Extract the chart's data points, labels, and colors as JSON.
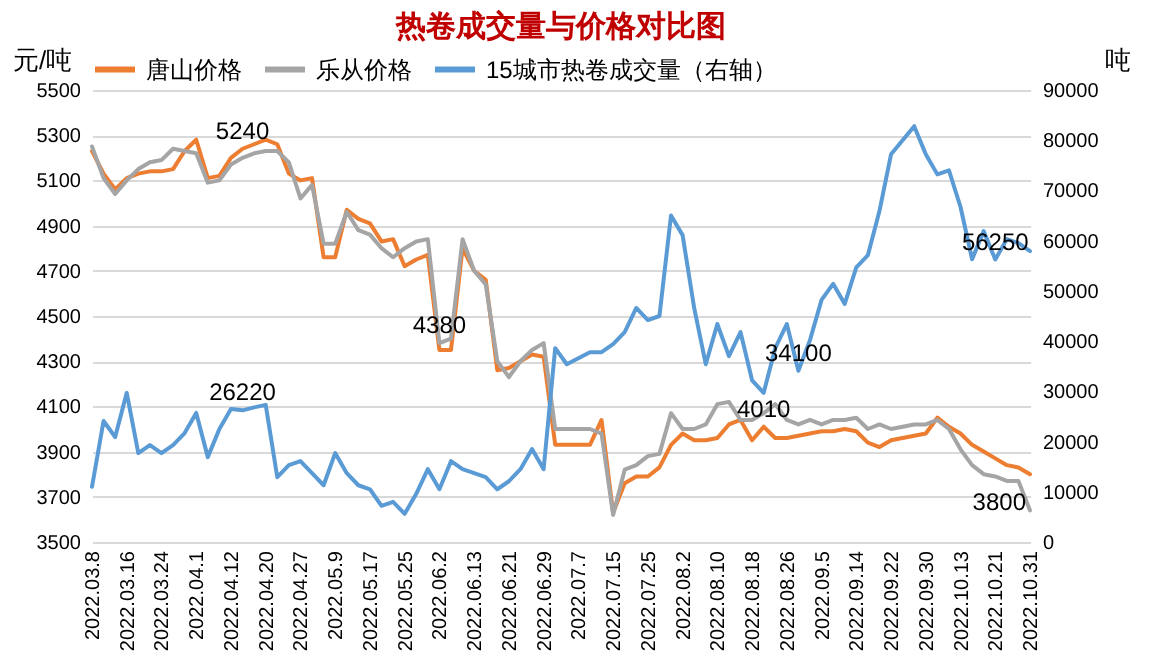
{
  "chart_data": {
    "type": "line",
    "title": "热卷成交量与价格对比图",
    "ylabel": "元/吨",
    "y2label": "吨",
    "categories": [
      "2022.03.8",
      null,
      null,
      "2022.03.16",
      null,
      null,
      "2022.03.24",
      null,
      null,
      "2022.04.1",
      null,
      null,
      "2022.04.12",
      null,
      null,
      "2022.04.20",
      null,
      null,
      "2022.04.27",
      null,
      null,
      "2022.05.9",
      null,
      null,
      "2022.05.17",
      null,
      null,
      "2022.05.25",
      null,
      null,
      "2022.06.2",
      null,
      null,
      "2022.06.13",
      null,
      null,
      "2022.06.21",
      null,
      null,
      "2022.06.29",
      null,
      null,
      "2022.07.7",
      null,
      null,
      "2022.07.15",
      null,
      null,
      "2022.07.25",
      null,
      null,
      "2022.08.2",
      null,
      null,
      "2022.08.10",
      null,
      null,
      "2022.08.18",
      null,
      null,
      "2022.08.26",
      null,
      null,
      "2022.09.5",
      null,
      null,
      "2022.09.14",
      null,
      null,
      "2022.09.22",
      null,
      null,
      "2022.09.30",
      null,
      null,
      "2022.10.13",
      null,
      null,
      "2022.10.21",
      null,
      null,
      "2022.10.31"
    ],
    "series": [
      {
        "name": "唐山价格",
        "color": "#ed7d31",
        "values": [
          5230,
          5130,
          5060,
          5110,
          5130,
          5140,
          5140,
          5150,
          5230,
          5280,
          5110,
          5120,
          5200,
          5240,
          5260,
          5280,
          5260,
          5130,
          5100,
          5110,
          4760,
          4760,
          4970,
          4930,
          4910,
          4830,
          4840,
          4720,
          4750,
          4770,
          4350,
          4350,
          4800,
          4700,
          4660,
          4260,
          4270,
          4300,
          4330,
          4320,
          3930,
          3930,
          3930,
          3930,
          4040,
          3630,
          3760,
          3790,
          3790,
          3830,
          3930,
          3980,
          3950,
          3950,
          3960,
          4020,
          4040,
          3950,
          4010,
          3960,
          3960,
          3970,
          3980,
          3990,
          3990,
          4000,
          3990,
          3940,
          3920,
          3950,
          3960,
          3970,
          3980,
          4050,
          4010,
          3980,
          3930,
          3900,
          3870,
          3840,
          3830,
          3800
        ],
        "value_labels": [
          null,
          null,
          null,
          null,
          null,
          null,
          null,
          null,
          null,
          null,
          null,
          null,
          null,
          "5240",
          null,
          null,
          null,
          null,
          null,
          null,
          null,
          null,
          null,
          null,
          null,
          null,
          null,
          null,
          null,
          null,
          null,
          null,
          null,
          null,
          null,
          null,
          null,
          null,
          null,
          null,
          null,
          null,
          null,
          null,
          null,
          null,
          null,
          null,
          null,
          null,
          null,
          null,
          null,
          null,
          null,
          null,
          null,
          null,
          "4010",
          null,
          null,
          null,
          null,
          null,
          null,
          null,
          null,
          null,
          null,
          null,
          null,
          null,
          null,
          null,
          null,
          null,
          null,
          null,
          null,
          null,
          null,
          "3800"
        ]
      },
      {
        "name": "乐从价格",
        "color": "#a5a5a5",
        "values": [
          5250,
          5110,
          5040,
          5100,
          5150,
          5180,
          5190,
          5240,
          5230,
          5220,
          5090,
          5100,
          5170,
          5200,
          5220,
          5230,
          5230,
          5180,
          5020,
          5080,
          4820,
          4820,
          4960,
          4880,
          4860,
          4800,
          4760,
          4800,
          4830,
          4840,
          4380,
          4400,
          4840,
          4700,
          4640,
          4300,
          4230,
          4300,
          4350,
          4380,
          4000,
          4000,
          4000,
          4000,
          3980,
          3620,
          3820,
          3840,
          3880,
          3890,
          4070,
          4000,
          4000,
          4020,
          4110,
          4120,
          4040,
          4040,
          4070,
          4110,
          4040,
          4020,
          4040,
          4020,
          4040,
          4040,
          4050,
          4000,
          4020,
          4000,
          4010,
          4020,
          4020,
          4040,
          4000,
          3910,
          3840,
          3800,
          3790,
          3770,
          3770,
          3640
        ],
        "value_labels": [
          null,
          null,
          null,
          null,
          null,
          null,
          null,
          null,
          null,
          null,
          null,
          null,
          null,
          null,
          null,
          null,
          null,
          null,
          null,
          null,
          null,
          null,
          null,
          null,
          null,
          null,
          null,
          null,
          null,
          null,
          "4380",
          null,
          null,
          null,
          null,
          null,
          null,
          null,
          null,
          null,
          null,
          null,
          null,
          null,
          null,
          null,
          null,
          null,
          null,
          null,
          null,
          null,
          null,
          null,
          null,
          null,
          null,
          null,
          null,
          null,
          null,
          null,
          null,
          null,
          null,
          null,
          null,
          null,
          null,
          null,
          null,
          null,
          null,
          null,
          null,
          null,
          null,
          null,
          null,
          null,
          null,
          null
        ]
      },
      {
        "name": "15城市热卷成交量（右轴）",
        "color": "#5b9bd5",
        "axis": "y2",
        "values": [
          11000,
          24100,
          20900,
          29700,
          17700,
          19300,
          17700,
          19300,
          21700,
          25700,
          16900,
          22500,
          26500,
          26220,
          26800,
          27300,
          12900,
          15300,
          16100,
          13700,
          11300,
          17700,
          13700,
          11300,
          10500,
          7200,
          8000,
          5600,
          9600,
          14500,
          10500,
          16100,
          14500,
          13700,
          12900,
          10500,
          12100,
          14500,
          18500,
          14500,
          38600,
          35400,
          36600,
          37800,
          37800,
          39400,
          41800,
          46600,
          44200,
          45000,
          65000,
          61100,
          46600,
          35400,
          43400,
          37000,
          41800,
          32200,
          29700,
          38600,
          43400,
          34100,
          40200,
          48200,
          51400,
          47400,
          54700,
          57100,
          65900,
          77200,
          80000,
          82800,
          77200,
          73200,
          74000,
          66700,
          56300,
          61900,
          56250,
          60300,
          59500,
          57900
        ],
        "value_labels": [
          null,
          null,
          null,
          null,
          null,
          null,
          null,
          null,
          null,
          null,
          null,
          null,
          null,
          "26220",
          null,
          null,
          null,
          null,
          null,
          null,
          null,
          null,
          null,
          null,
          null,
          null,
          null,
          null,
          null,
          null,
          null,
          null,
          null,
          null,
          null,
          null,
          null,
          null,
          null,
          null,
          null,
          null,
          null,
          null,
          null,
          null,
          null,
          null,
          null,
          null,
          null,
          null,
          null,
          null,
          null,
          null,
          null,
          null,
          null,
          null,
          null,
          "34100",
          null,
          null,
          null,
          null,
          null,
          null,
          null,
          null,
          null,
          null,
          null,
          null,
          null,
          null,
          null,
          null,
          "56250",
          null,
          null,
          null
        ]
      }
    ],
    "ylim": [
      3500,
      5500
    ],
    "yticks": [
      3500,
      3700,
      3900,
      4100,
      4300,
      4500,
      4700,
      4900,
      5100,
      5300,
      5500
    ],
    "y2lim": [
      0,
      90000
    ],
    "y2ticks": [
      0,
      10000,
      20000,
      30000,
      40000,
      50000,
      60000,
      70000,
      80000,
      90000
    ],
    "grid": "y",
    "legend": "top"
  }
}
